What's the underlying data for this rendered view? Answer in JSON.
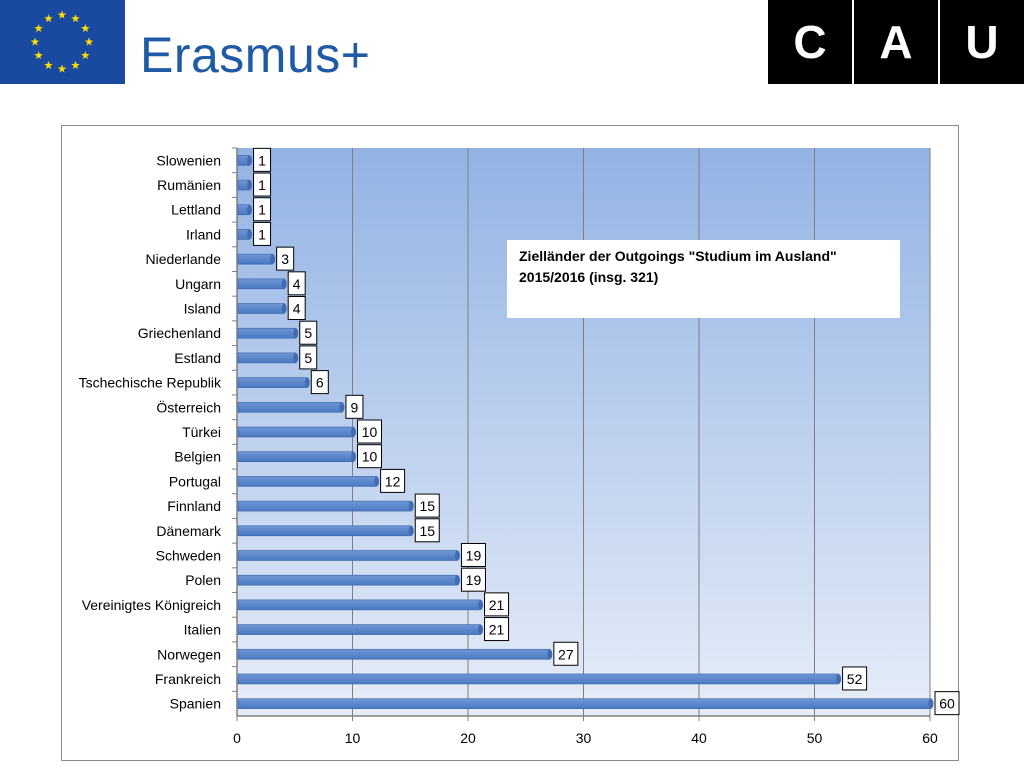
{
  "header": {
    "brand": "Erasmus+",
    "university_logo_letters": [
      "C",
      "A",
      "U"
    ]
  },
  "colors": {
    "eu_blue": "#1a49a0",
    "eu_star": "#ffdd00",
    "brand_text": "#1f5aa6",
    "bar_fill": "#4a78c0",
    "plot_bg_top": "#93b3e4",
    "plot_bg_bottom": "#e6edf8",
    "cau_bg": "#000000"
  },
  "chart_data": {
    "type": "bar",
    "orientation": "horizontal",
    "title": "Zielländer der  Outgoings \"Studium im Ausland\"\n2015/2016 (insg. 321)",
    "categories": [
      "Slowenien",
      "Rumänien",
      "Lettland",
      "Irland",
      "Niederlande",
      "Ungarn",
      "Island",
      "Griechenland",
      "Estland",
      "Tschechische Republik",
      "Österreich",
      "Türkei",
      "Belgien",
      "Portugal",
      "Finnland",
      "Dänemark",
      "Schweden",
      "Polen",
      "Vereinigtes Königreich",
      "Italien",
      "Norwegen",
      "Frankreich",
      "Spanien"
    ],
    "values": [
      1,
      1,
      1,
      1,
      3,
      4,
      4,
      5,
      5,
      6,
      9,
      10,
      10,
      12,
      15,
      15,
      19,
      19,
      21,
      21,
      27,
      52,
      60
    ],
    "xlim": [
      0,
      60
    ],
    "xticks": [
      "0",
      "10",
      "20",
      "30",
      "40",
      "50",
      "60"
    ],
    "xlabel": "",
    "ylabel": "",
    "grid": true,
    "data_labels": true
  }
}
